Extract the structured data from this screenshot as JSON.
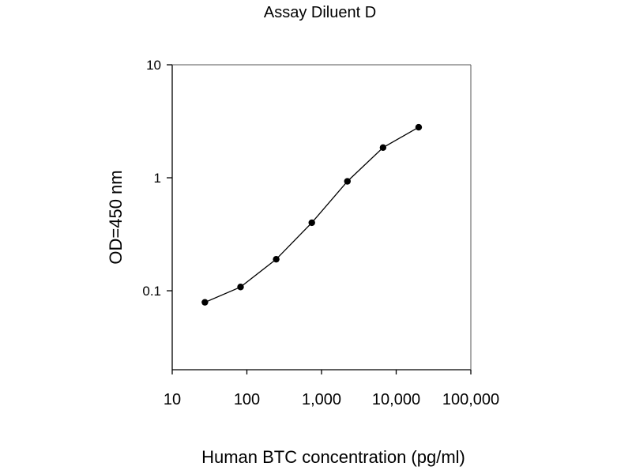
{
  "chart_data": {
    "type": "line",
    "title": "Assay Diluent D",
    "xlabel": "Human BTC concentration (pg/ml)",
    "ylabel": "OD=450 nm",
    "x_scale": "log",
    "y_scale": "log",
    "xlim": [
      10,
      100000
    ],
    "ylim": [
      0.02,
      10
    ],
    "xticks": [
      10,
      100,
      1000,
      10000,
      100000
    ],
    "xtick_labels": [
      "10",
      "100",
      "1,000",
      "10,000",
      "100,000"
    ],
    "yticks": [
      0.1,
      1,
      10
    ],
    "ytick_labels": [
      "0.1",
      "1",
      "10"
    ],
    "grid": false,
    "legend": "none",
    "series": [
      {
        "x": [
          27.4,
          82.3,
          247,
          741,
          2222,
          6667,
          20000
        ],
        "y": [
          0.079,
          0.108,
          0.19,
          0.4,
          0.93,
          1.85,
          2.8
        ],
        "color": "#000000"
      }
    ]
  }
}
